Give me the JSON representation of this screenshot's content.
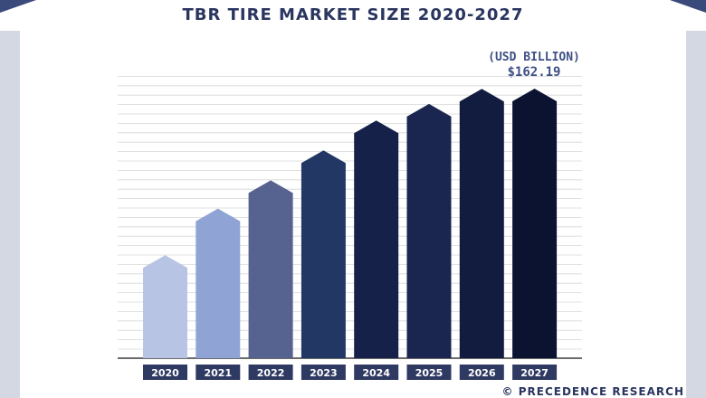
{
  "title": "TBR TIRE MARKET SIZE 2020-2027",
  "unit_label": "(USD BILLION)",
  "top_value_label": "$162.19",
  "source": "© PRECEDENCE RESEARCH",
  "colors": {
    "title": "#2a3560",
    "accent": "#3e4f86",
    "frame": "#d4d8e3",
    "label_box": "#2f3a63",
    "label_text": "#ffffff",
    "grid": "#d6d6d6",
    "bars": [
      "#b8c4e3",
      "#8fa3d4",
      "#56628f",
      "#233765",
      "#16214a",
      "#1a2650",
      "#111c3e",
      "#0c1330"
    ]
  },
  "chart_data": {
    "type": "bar",
    "title": "TBR TIRE MARKET SIZE 2020-2027",
    "ylabel": "(USD BILLION)",
    "xlabel": "",
    "categories": [
      "2020",
      "2021",
      "2022",
      "2023",
      "2024",
      "2025",
      "2026",
      "2027"
    ],
    "values": [
      62,
      90,
      107,
      125,
      143,
      153,
      162,
      162.19
    ],
    "ylim": [
      0,
      162.19
    ],
    "grid": true,
    "data_labels": {
      "2027": "$162.19"
    }
  }
}
